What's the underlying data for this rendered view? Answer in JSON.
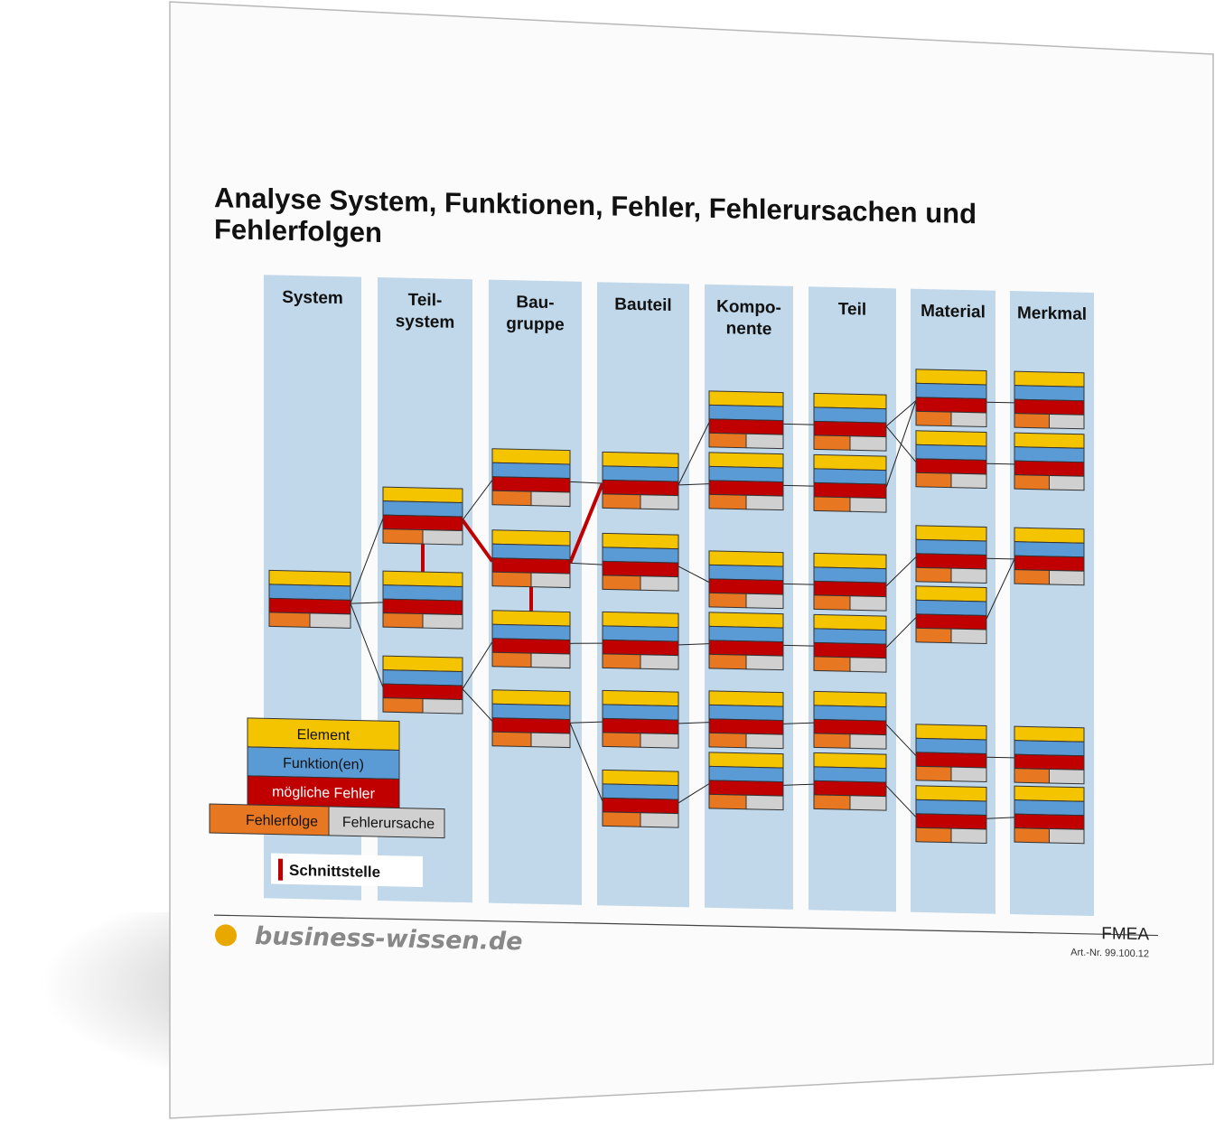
{
  "title_line1": "Analyse System, Funktionen, Fehler, Fehlerursachen und",
  "title_line2": "Fehlerfolgen",
  "columns": [
    {
      "line1": "System",
      "line2": ""
    },
    {
      "line1": "Teil-",
      "line2": "system"
    },
    {
      "line1": "Bau-",
      "line2": "gruppe"
    },
    {
      "line1": "Bauteil",
      "line2": ""
    },
    {
      "line1": "Kompo-",
      "line2": "nente"
    },
    {
      "line1": "Teil",
      "line2": ""
    },
    {
      "line1": "Material",
      "line2": ""
    },
    {
      "line1": "Merkmal",
      "line2": ""
    }
  ],
  "legend": {
    "element": "Element",
    "funktion": "Funktion(en)",
    "fehler": "mögliche Fehler",
    "fehlerfolge": "Fehlerfolge",
    "fehlerursache": "Fehlerursache",
    "schnittstelle": "Schnittstelle"
  },
  "footer": {
    "brand": "business-wissen.de",
    "doc_title": "FMEA",
    "art_nr": "Art.-Nr. 99.100.12"
  },
  "colors": {
    "element": "#f5c400",
    "funktion": "#5b9bd5",
    "fehler": "#c00000",
    "fehlerfolge": "#e87722",
    "fehlerursache": "#d0d0d0",
    "column": "#c0d8ea",
    "brand_dot": "#e8a800"
  }
}
